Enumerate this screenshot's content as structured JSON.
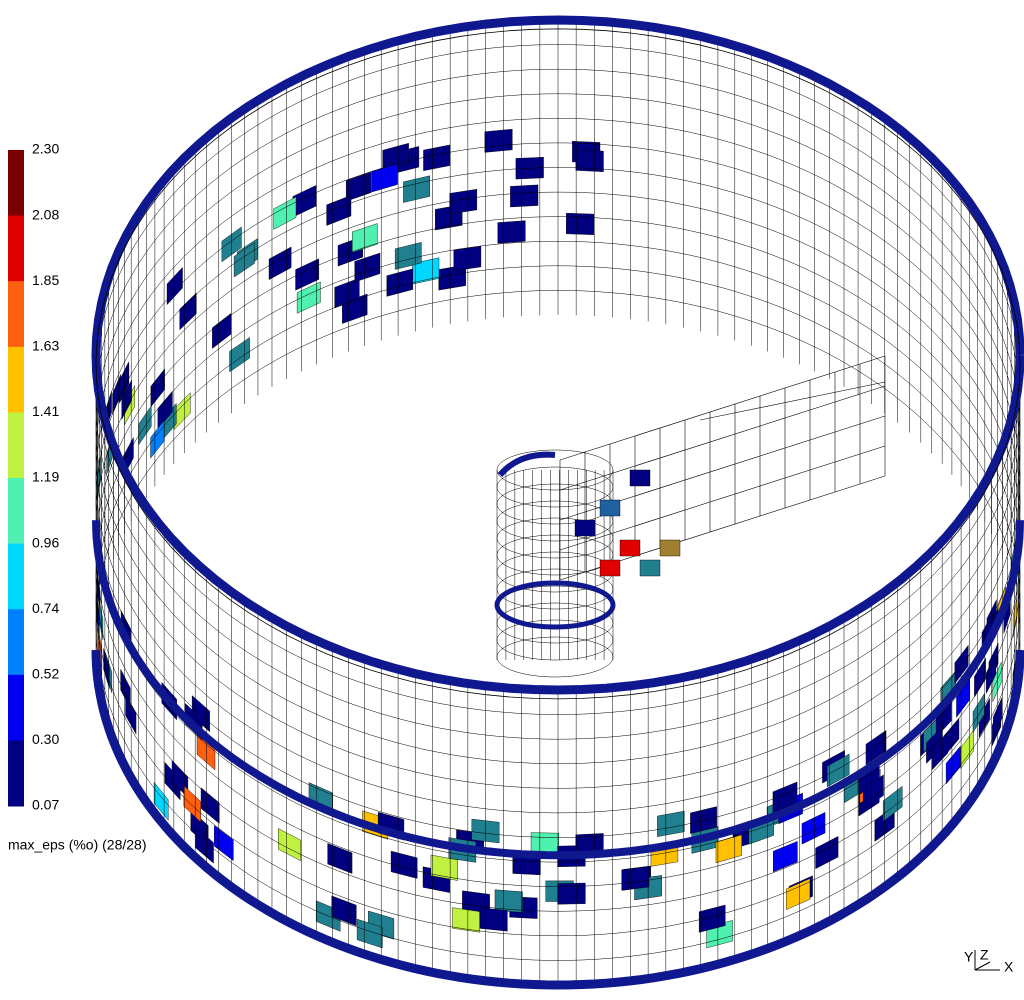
{
  "legend": {
    "ticks": [
      "2.30",
      "2.08",
      "1.85",
      "1.63",
      "1.41",
      "1.19",
      "0.96",
      "0.74",
      "0.52",
      "0.30",
      "0.07"
    ],
    "colors": [
      "#7a0000",
      "#e00000",
      "#ff6010",
      "#ffc000",
      "#c0f040",
      "#50f0b0",
      "#00d8ff",
      "#0080ff",
      "#0000f0",
      "#000080"
    ],
    "label": "max_eps (%o) (28/28)"
  },
  "axes": {
    "y": "Y",
    "z": "Z",
    "x": "X"
  }
}
